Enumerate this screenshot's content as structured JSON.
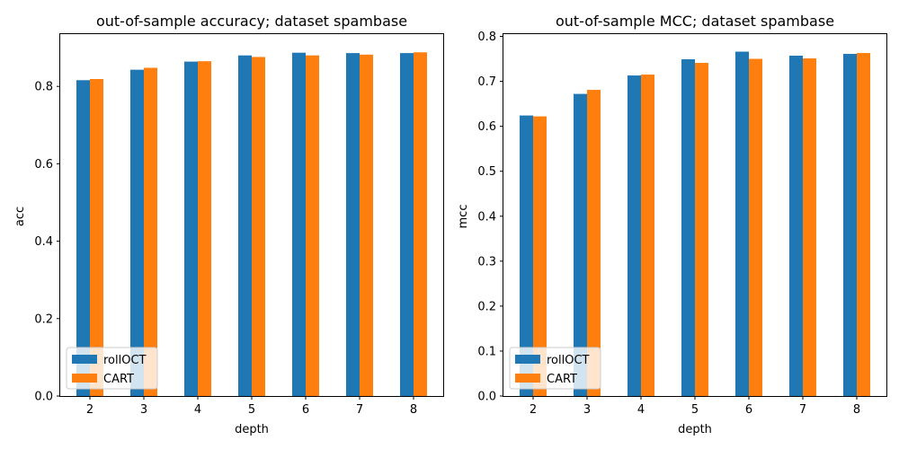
{
  "chart_data": [
    {
      "type": "bar",
      "title": "out-of-sample accuracy; dataset spambase",
      "xlabel": "depth",
      "ylabel": "acc",
      "categories": [
        "2",
        "3",
        "4",
        "5",
        "6",
        "7",
        "8"
      ],
      "ylim": [
        0,
        0.935
      ],
      "yticks": [
        "0.0",
        "0.2",
        "0.4",
        "0.6",
        "0.8"
      ],
      "ytick_values": [
        0,
        0.2,
        0.4,
        0.6,
        0.8
      ],
      "legend_position": "lower-left",
      "series": [
        {
          "name": "rollOCT",
          "color": "#1f77b4",
          "values": [
            0.816,
            0.843,
            0.864,
            0.88,
            0.887,
            0.886,
            0.886
          ]
        },
        {
          "name": "CART",
          "color": "#ff7f0e",
          "values": [
            0.819,
            0.848,
            0.865,
            0.876,
            0.88,
            0.882,
            0.888
          ]
        }
      ]
    },
    {
      "type": "bar",
      "title": "out-of-sample MCC; dataset spambase",
      "xlabel": "depth",
      "ylabel": "mcc",
      "categories": [
        "2",
        "3",
        "4",
        "5",
        "6",
        "7",
        "8"
      ],
      "ylim": [
        0,
        0.805
      ],
      "yticks": [
        "0.0",
        "0.1",
        "0.2",
        "0.3",
        "0.4",
        "0.5",
        "0.6",
        "0.7",
        "0.8"
      ],
      "ytick_values": [
        0,
        0.1,
        0.2,
        0.3,
        0.4,
        0.5,
        0.6,
        0.7,
        0.8
      ],
      "legend_position": "lower-left",
      "series": [
        {
          "name": "rollOCT",
          "color": "#1f77b4",
          "values": [
            0.624,
            0.672,
            0.713,
            0.749,
            0.766,
            0.757,
            0.761
          ]
        },
        {
          "name": "CART",
          "color": "#ff7f0e",
          "values": [
            0.622,
            0.681,
            0.715,
            0.741,
            0.75,
            0.751,
            0.763
          ]
        }
      ]
    }
  ]
}
